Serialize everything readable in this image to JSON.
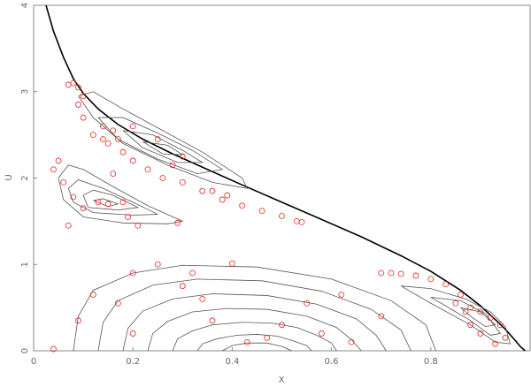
{
  "chart_data": {
    "type": "scatter",
    "xlabel": "X",
    "ylabel": "U",
    "xlim": [
      0,
      1
    ],
    "ylim": [
      0,
      4
    ],
    "xticks": [
      0,
      0.2,
      0.4,
      0.6,
      0.8
    ],
    "yticks": [
      0,
      1,
      2,
      3,
      4
    ],
    "series": [
      {
        "mode": "lines",
        "color": "#000000",
        "x": [
          0.025,
          0.04,
          0.06,
          0.08,
          0.1,
          0.13,
          0.17,
          0.22,
          0.28,
          0.35,
          0.42,
          0.5,
          0.58,
          0.66,
          0.74,
          0.8,
          0.86,
          0.9,
          0.93,
          0.95,
          0.97,
          0.98,
          0.99
        ],
        "y": [
          4,
          3.7,
          3.4,
          3.15,
          2.98,
          2.8,
          2.62,
          2.45,
          2.28,
          2.1,
          1.92,
          1.72,
          1.52,
          1.32,
          1.1,
          0.92,
          0.7,
          0.52,
          0.36,
          0.25,
          0.12,
          0.05,
          0
        ]
      },
      {
        "mode": "lines",
        "color": "#555555",
        "x": [
          0.08,
          0.09,
          0.12,
          0.2,
          0.3,
          0.45,
          0.6,
          0.72,
          0.79,
          0.81
        ],
        "y": [
          0,
          0.4,
          0.7,
          0.9,
          0.99,
          0.97,
          0.83,
          0.58,
          0.3,
          0
        ]
      },
      {
        "mode": "lines",
        "color": "#555555",
        "x": [
          0.13,
          0.14,
          0.17,
          0.24,
          0.33,
          0.46,
          0.58,
          0.68,
          0.74,
          0.76
        ],
        "y": [
          0,
          0.33,
          0.58,
          0.76,
          0.83,
          0.81,
          0.69,
          0.48,
          0.24,
          0
        ]
      },
      {
        "mode": "lines",
        "color": "#555555",
        "x": [
          0.18,
          0.19,
          0.22,
          0.28,
          0.36,
          0.47,
          0.57,
          0.65,
          0.69,
          0.71
        ],
        "y": [
          0,
          0.26,
          0.46,
          0.6,
          0.66,
          0.64,
          0.54,
          0.37,
          0.18,
          0
        ]
      },
      {
        "mode": "lines",
        "color": "#555555",
        "x": [
          0.23,
          0.24,
          0.27,
          0.32,
          0.39,
          0.47,
          0.55,
          0.61,
          0.64,
          0.66
        ],
        "y": [
          0,
          0.2,
          0.34,
          0.45,
          0.49,
          0.48,
          0.4,
          0.27,
          0.13,
          0
        ]
      },
      {
        "mode": "lines",
        "color": "#555555",
        "x": [
          0.28,
          0.29,
          0.32,
          0.36,
          0.42,
          0.48,
          0.53,
          0.57,
          0.6,
          0.61
        ],
        "y": [
          0,
          0.14,
          0.23,
          0.3,
          0.33,
          0.32,
          0.27,
          0.18,
          0.09,
          0
        ]
      },
      {
        "mode": "lines",
        "color": "#555555",
        "x": [
          0.33,
          0.34,
          0.37,
          0.41,
          0.45,
          0.49,
          0.52,
          0.55,
          0.56
        ],
        "y": [
          0,
          0.08,
          0.14,
          0.18,
          0.19,
          0.17,
          0.12,
          0.06,
          0
        ]
      },
      {
        "mode": "lines",
        "color": "#555555",
        "x": [
          0.38,
          0.4,
          0.43,
          0.47,
          0.5,
          0.52
        ],
        "y": [
          0,
          0.06,
          0.09,
          0.09,
          0.05,
          0
        ]
      },
      {
        "mode": "lines",
        "color": "#555555",
        "x": [
          0.05,
          0.07,
          0.1,
          0.16,
          0.23,
          0.3,
          0.27,
          0.18,
          0.1,
          0.06,
          0.05
        ],
        "y": [
          2.0,
          2.15,
          2.1,
          1.9,
          1.68,
          1.5,
          1.47,
          1.48,
          1.55,
          1.75,
          2.0
        ]
      },
      {
        "mode": "lines",
        "color": "#555555",
        "x": [
          0.07,
          0.09,
          0.14,
          0.2,
          0.25,
          0.2,
          0.12,
          0.08,
          0.07
        ],
        "y": [
          1.88,
          1.98,
          1.88,
          1.72,
          1.58,
          1.57,
          1.6,
          1.72,
          1.88
        ]
      },
      {
        "mode": "lines",
        "color": "#555555",
        "x": [
          0.1,
          0.12,
          0.16,
          0.21,
          0.17,
          0.11,
          0.1
        ],
        "y": [
          1.8,
          1.86,
          1.8,
          1.66,
          1.63,
          1.66,
          1.8
        ]
      },
      {
        "mode": "lines",
        "color": "#555555",
        "x": [
          0.12,
          0.14,
          0.17,
          0.15,
          0.12
        ],
        "y": [
          1.74,
          1.76,
          1.7,
          1.67,
          1.74
        ]
      },
      {
        "mode": "lines",
        "color": "#555555",
        "x": [
          0.09,
          0.12,
          0.18,
          0.26,
          0.34,
          0.42,
          0.43,
          0.36,
          0.27,
          0.18,
          0.12,
          0.09
        ],
        "y": [
          2.95,
          3.0,
          2.8,
          2.55,
          2.3,
          2.0,
          1.88,
          1.95,
          2.15,
          2.4,
          2.7,
          2.95
        ]
      },
      {
        "mode": "lines",
        "color": "#555555",
        "x": [
          0.13,
          0.18,
          0.25,
          0.32,
          0.38,
          0.33,
          0.25,
          0.17,
          0.13
        ],
        "y": [
          2.7,
          2.7,
          2.52,
          2.32,
          2.1,
          2.05,
          2.22,
          2.45,
          2.7
        ]
      },
      {
        "mode": "lines",
        "color": "#555555",
        "x": [
          0.18,
          0.24,
          0.3,
          0.34,
          0.29,
          0.22,
          0.18
        ],
        "y": [
          2.55,
          2.5,
          2.32,
          2.18,
          2.18,
          2.35,
          2.55
        ]
      },
      {
        "mode": "lines",
        "color": "#555555",
        "x": [
          0.22,
          0.27,
          0.3,
          0.26,
          0.22
        ],
        "y": [
          2.42,
          2.38,
          2.27,
          2.28,
          2.42
        ]
      },
      {
        "mode": "lines",
        "color": "#555555",
        "x": [
          0.74,
          0.8,
          0.87,
          0.92,
          0.95,
          0.96,
          0.93,
          0.88,
          0.8,
          0.74
        ],
        "y": [
          0.75,
          0.72,
          0.6,
          0.45,
          0.28,
          0.08,
          0.1,
          0.3,
          0.55,
          0.75
        ]
      },
      {
        "mode": "lines",
        "color": "#555555",
        "x": [
          0.8,
          0.86,
          0.91,
          0.94,
          0.92,
          0.88,
          0.8
        ],
        "y": [
          0.62,
          0.58,
          0.43,
          0.2,
          0.18,
          0.35,
          0.62
        ]
      },
      {
        "mode": "lines",
        "color": "#555555",
        "x": [
          0.86,
          0.9,
          0.93,
          0.91,
          0.88,
          0.86
        ],
        "y": [
          0.5,
          0.45,
          0.3,
          0.28,
          0.4,
          0.5
        ]
      },
      {
        "mode": "markers",
        "color": "#e8281e",
        "x": [
          0.07,
          0.08,
          0.09,
          0.1,
          0.09,
          0.1,
          0.12,
          0.14,
          0.16,
          0.14,
          0.15,
          0.18,
          0.2,
          0.23,
          0.26,
          0.3,
          0.34,
          0.38,
          0.42,
          0.46,
          0.5,
          0.53,
          0.54,
          0.2,
          0.25,
          0.3,
          0.36,
          0.39,
          0.28,
          0.17,
          0.04,
          0.05,
          0.06,
          0.08,
          0.1,
          0.13,
          0.15,
          0.16,
          0.19,
          0.21,
          0.29,
          0.18,
          0.07,
          0.09,
          0.12,
          0.17,
          0.2,
          0.2,
          0.25,
          0.3,
          0.34,
          0.36,
          0.4,
          0.43,
          0.47,
          0.5,
          0.55,
          0.58,
          0.64,
          0.7,
          0.62,
          0.32,
          0.04,
          0.7,
          0.72,
          0.74,
          0.77,
          0.8,
          0.83,
          0.86,
          0.88,
          0.9,
          0.92,
          0.94,
          0.95,
          0.93,
          0.9,
          0.88,
          0.85,
          0.87
        ],
        "y": [
          3.08,
          3.1,
          3.05,
          2.95,
          2.85,
          2.7,
          2.5,
          2.45,
          2.55,
          2.6,
          2.4,
          2.3,
          2.2,
          2.1,
          2.0,
          1.95,
          1.85,
          1.75,
          1.68,
          1.62,
          1.56,
          1.5,
          1.49,
          2.6,
          2.45,
          2.25,
          1.85,
          1.8,
          2.15,
          2.45,
          2.1,
          2.2,
          1.95,
          1.78,
          1.65,
          1.72,
          1.7,
          2.05,
          1.55,
          1.45,
          1.48,
          1.72,
          1.45,
          0.35,
          0.65,
          0.55,
          0.2,
          0.9,
          1.0,
          0.75,
          0.6,
          0.35,
          1.01,
          0.1,
          0.15,
          0.3,
          0.55,
          0.2,
          0.1,
          0.4,
          0.65,
          0.9,
          0.02,
          0.9,
          0.9,
          0.89,
          0.87,
          0.83,
          0.77,
          0.65,
          0.5,
          0.45,
          0.38,
          0.3,
          0.15,
          0.08,
          0.2,
          0.3,
          0.55,
          0.45
        ]
      }
    ]
  }
}
